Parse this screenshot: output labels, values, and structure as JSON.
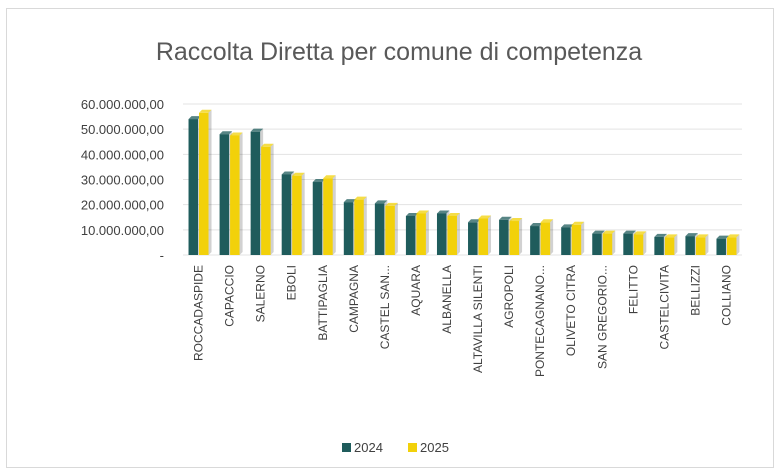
{
  "chart_data": {
    "type": "bar",
    "title": "Raccolta Diretta per comune di competenza",
    "xlabel": "",
    "ylabel": "",
    "ylim": [
      0,
      60000000
    ],
    "yticks": [
      0,
      10000000,
      20000000,
      30000000,
      40000000,
      50000000,
      60000000
    ],
    "ytick_labels": [
      "-",
      "10.000.000,00",
      "20.000.000,00",
      "30.000.000,00",
      "40.000.000,00",
      "50.000.000,00",
      "60.000.000,00"
    ],
    "grid": true,
    "legend_position": "bottom",
    "categories": [
      "ROCCADASPIDE",
      "CAPACCIO",
      "SALERNO",
      "EBOLI",
      "BATTIPAGLIA",
      "CAMPAGNA",
      "CASTEL SAN...",
      "AQUARA",
      "ALBANELLA",
      "ALTAVILLA SILENTI",
      "AGROPOLI",
      "PONTECAGNANO...",
      "OLIVETO CITRA",
      "SAN GREGORIO...",
      "FELITTO",
      "CASTELCIVITA",
      "BELLIZZI",
      "COLLIANO"
    ],
    "series": [
      {
        "name": "2024",
        "color": "#1f5c5c",
        "values": [
          54000000,
          48000000,
          49000000,
          32000000,
          29000000,
          21000000,
          20500000,
          15500000,
          16500000,
          13000000,
          14000000,
          11500000,
          11000000,
          8500000,
          8500000,
          7200000,
          7500000,
          6500000
        ]
      },
      {
        "name": "2025",
        "color": "#f2d10a",
        "values": [
          56500000,
          47500000,
          43000000,
          31500000,
          30500000,
          22000000,
          19500000,
          16500000,
          15500000,
          14500000,
          13500000,
          13000000,
          12000000,
          8500000,
          8200000,
          7000000,
          7000000,
          7000000
        ]
      }
    ]
  }
}
